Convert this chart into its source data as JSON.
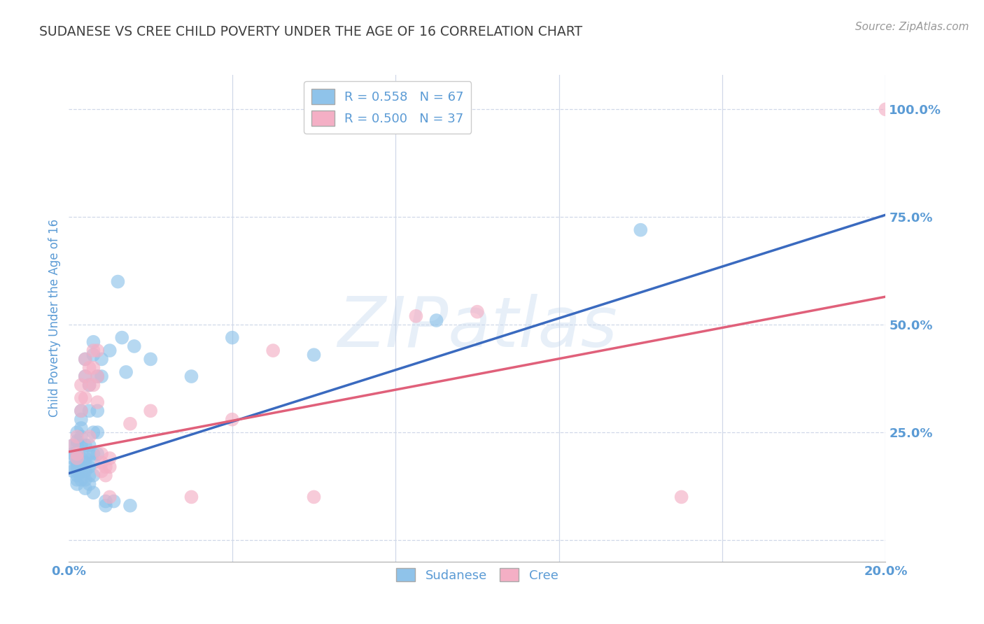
{
  "title": "SUDANESE VS CREE CHILD POVERTY UNDER THE AGE OF 16 CORRELATION CHART",
  "source": "Source: ZipAtlas.com",
  "ylabel": "Child Poverty Under the Age of 16",
  "xlim": [
    0.0,
    0.2
  ],
  "ylim": [
    -0.05,
    1.08
  ],
  "xticks": [
    0.0,
    0.04,
    0.08,
    0.12,
    0.16,
    0.2
  ],
  "xtick_labels": [
    "0.0%",
    "",
    "",
    "",
    "",
    "20.0%"
  ],
  "ytick_positions": [
    0.0,
    0.25,
    0.5,
    0.75,
    1.0
  ],
  "ytick_labels": [
    "",
    "25.0%",
    "50.0%",
    "75.0%",
    "100.0%"
  ],
  "sudanese_R": 0.558,
  "sudanese_N": 67,
  "cree_R": 0.5,
  "cree_N": 37,
  "sudanese_color": "#8fc3ea",
  "sudanese_line_color": "#3a6abf",
  "cree_color": "#f4afc5",
  "cree_line_color": "#e0607a",
  "watermark_text": "ZIPatlas",
  "background_color": "#ffffff",
  "grid_color": "#d0d8e8",
  "axis_color": "#5b9bd5",
  "title_color": "#404040",
  "sudanese_line_y0": 0.155,
  "sudanese_line_y1": 0.755,
  "cree_line_y0": 0.205,
  "cree_line_y1": 0.565,
  "sudanese_points": [
    [
      0.001,
      0.22
    ],
    [
      0.001,
      0.2
    ],
    [
      0.001,
      0.19
    ],
    [
      0.001,
      0.17
    ],
    [
      0.001,
      0.16
    ],
    [
      0.002,
      0.25
    ],
    [
      0.002,
      0.23
    ],
    [
      0.002,
      0.22
    ],
    [
      0.002,
      0.2
    ],
    [
      0.002,
      0.18
    ],
    [
      0.002,
      0.17
    ],
    [
      0.002,
      0.16
    ],
    [
      0.002,
      0.15
    ],
    [
      0.002,
      0.14
    ],
    [
      0.002,
      0.13
    ],
    [
      0.003,
      0.3
    ],
    [
      0.003,
      0.28
    ],
    [
      0.003,
      0.26
    ],
    [
      0.003,
      0.24
    ],
    [
      0.003,
      0.22
    ],
    [
      0.003,
      0.19
    ],
    [
      0.003,
      0.17
    ],
    [
      0.003,
      0.16
    ],
    [
      0.003,
      0.14
    ],
    [
      0.004,
      0.42
    ],
    [
      0.004,
      0.38
    ],
    [
      0.004,
      0.22
    ],
    [
      0.004,
      0.19
    ],
    [
      0.004,
      0.18
    ],
    [
      0.004,
      0.16
    ],
    [
      0.004,
      0.14
    ],
    [
      0.004,
      0.12
    ],
    [
      0.005,
      0.36
    ],
    [
      0.005,
      0.3
    ],
    [
      0.005,
      0.22
    ],
    [
      0.005,
      0.2
    ],
    [
      0.005,
      0.17
    ],
    [
      0.005,
      0.15
    ],
    [
      0.005,
      0.13
    ],
    [
      0.006,
      0.46
    ],
    [
      0.006,
      0.43
    ],
    [
      0.006,
      0.25
    ],
    [
      0.006,
      0.2
    ],
    [
      0.006,
      0.18
    ],
    [
      0.006,
      0.15
    ],
    [
      0.006,
      0.11
    ],
    [
      0.007,
      0.38
    ],
    [
      0.007,
      0.3
    ],
    [
      0.007,
      0.25
    ],
    [
      0.007,
      0.2
    ],
    [
      0.008,
      0.42
    ],
    [
      0.008,
      0.38
    ],
    [
      0.009,
      0.09
    ],
    [
      0.009,
      0.08
    ],
    [
      0.01,
      0.44
    ],
    [
      0.011,
      0.09
    ],
    [
      0.012,
      0.6
    ],
    [
      0.013,
      0.47
    ],
    [
      0.014,
      0.39
    ],
    [
      0.015,
      0.08
    ],
    [
      0.016,
      0.45
    ],
    [
      0.02,
      0.42
    ],
    [
      0.03,
      0.38
    ],
    [
      0.04,
      0.47
    ],
    [
      0.06,
      0.43
    ],
    [
      0.09,
      0.51
    ],
    [
      0.14,
      0.72
    ]
  ],
  "cree_points": [
    [
      0.001,
      0.22
    ],
    [
      0.002,
      0.24
    ],
    [
      0.002,
      0.2
    ],
    [
      0.002,
      0.19
    ],
    [
      0.003,
      0.36
    ],
    [
      0.003,
      0.33
    ],
    [
      0.003,
      0.3
    ],
    [
      0.004,
      0.42
    ],
    [
      0.004,
      0.38
    ],
    [
      0.004,
      0.33
    ],
    [
      0.005,
      0.4
    ],
    [
      0.005,
      0.36
    ],
    [
      0.005,
      0.24
    ],
    [
      0.006,
      0.44
    ],
    [
      0.006,
      0.4
    ],
    [
      0.006,
      0.36
    ],
    [
      0.007,
      0.44
    ],
    [
      0.007,
      0.38
    ],
    [
      0.007,
      0.32
    ],
    [
      0.008,
      0.2
    ],
    [
      0.008,
      0.18
    ],
    [
      0.008,
      0.16
    ],
    [
      0.009,
      0.17
    ],
    [
      0.009,
      0.15
    ],
    [
      0.01,
      0.19
    ],
    [
      0.01,
      0.17
    ],
    [
      0.01,
      0.1
    ],
    [
      0.015,
      0.27
    ],
    [
      0.02,
      0.3
    ],
    [
      0.03,
      0.1
    ],
    [
      0.04,
      0.28
    ],
    [
      0.05,
      0.44
    ],
    [
      0.06,
      0.1
    ],
    [
      0.085,
      0.52
    ],
    [
      0.1,
      0.53
    ],
    [
      0.15,
      0.1
    ],
    [
      0.2,
      1.0
    ]
  ]
}
